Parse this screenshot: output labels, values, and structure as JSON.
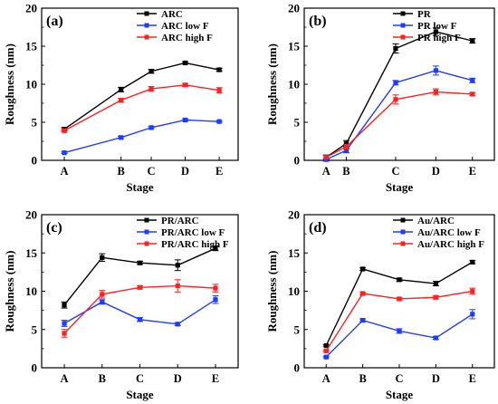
{
  "colors": {
    "black": "#000000",
    "blue": "#1f3bff",
    "red": "#ff2020"
  },
  "chart_data": [
    {
      "type": "line",
      "panel_label": "(a)",
      "xlabel": "Stage",
      "ylabel": "Roughness (nm)",
      "categories": [
        "A",
        "B",
        "C",
        "D",
        "E"
      ],
      "x": [
        0,
        1.5,
        2.3,
        3.2,
        4.1
      ],
      "xlim": [
        -0.6,
        4.6
      ],
      "ylim": [
        0,
        20
      ],
      "yticks": [
        0,
        5,
        10,
        15,
        20
      ],
      "legend_position": "top-right",
      "series": [
        {
          "name": "ARC",
          "color": "#000000",
          "values": [
            4.1,
            9.3,
            11.7,
            12.8,
            11.9
          ],
          "errors": [
            0.2,
            0.3,
            0.25,
            0.15,
            0.2
          ]
        },
        {
          "name": "ARC low F",
          "color": "#1f3bff",
          "values": [
            1.0,
            3.0,
            4.3,
            5.3,
            5.1
          ],
          "errors": [
            0.1,
            0.15,
            0.15,
            0.15,
            0.1
          ]
        },
        {
          "name": "ARC high F",
          "color": "#ff2020",
          "values": [
            3.9,
            7.9,
            9.4,
            9.9,
            9.2
          ],
          "errors": [
            0.2,
            0.25,
            0.3,
            0.2,
            0.35
          ]
        }
      ]
    },
    {
      "type": "line",
      "panel_label": "(b)",
      "xlabel": "Stage",
      "ylabel": "Roughness (nm)",
      "categories": [
        "A",
        "B",
        "C",
        "D",
        "E"
      ],
      "x": [
        0,
        0.55,
        1.9,
        3.0,
        4.0
      ],
      "xlim": [
        -0.6,
        4.6
      ],
      "ylim": [
        0,
        20
      ],
      "yticks": [
        0,
        5,
        10,
        15,
        20
      ],
      "legend_position": "top-right",
      "series": [
        {
          "name": "PR",
          "color": "#000000",
          "values": [
            0.4,
            2.2,
            14.7,
            16.9,
            15.7
          ],
          "errors": [
            0.3,
            0.4,
            0.6,
            0.5,
            0.3
          ]
        },
        {
          "name": "PR low F",
          "color": "#1f3bff",
          "values": [
            0.1,
            1.3,
            10.2,
            11.8,
            10.5
          ],
          "errors": [
            0.2,
            0.3,
            0.3,
            0.6,
            0.3
          ]
        },
        {
          "name": "PR high F",
          "color": "#ff2020",
          "values": [
            0.4,
            1.8,
            8.0,
            9.0,
            8.7
          ],
          "errors": [
            0.2,
            0.3,
            0.6,
            0.4,
            0.2
          ]
        }
      ]
    },
    {
      "type": "line",
      "panel_label": "(c)",
      "xlabel": "Stage",
      "ylabel": "Roughness (nm)",
      "categories": [
        "A",
        "B",
        "C",
        "D",
        "E"
      ],
      "x": [
        0,
        1,
        2,
        3,
        4
      ],
      "xlim": [
        -0.6,
        4.6
      ],
      "ylim": [
        0,
        20
      ],
      "yticks": [
        0,
        5,
        10,
        15,
        20
      ],
      "legend_position": "top-right",
      "series": [
        {
          "name": "PR/ARC",
          "color": "#000000",
          "values": [
            8.2,
            14.4,
            13.7,
            13.4,
            15.6
          ],
          "errors": [
            0.4,
            0.5,
            0.2,
            0.7,
            0.3
          ]
        },
        {
          "name": "PR/ARC low F",
          "color": "#1f3bff",
          "values": [
            5.8,
            8.6,
            6.3,
            5.7,
            8.9
          ],
          "errors": [
            0.4,
            0.3,
            0.25,
            0.2,
            0.5
          ]
        },
        {
          "name": "PR/ARC high F",
          "color": "#ff2020",
          "values": [
            4.5,
            9.6,
            10.5,
            10.7,
            10.4
          ],
          "errors": [
            0.5,
            0.5,
            0.2,
            0.8,
            0.5
          ]
        }
      ]
    },
    {
      "type": "line",
      "panel_label": "(d)",
      "xlabel": "Stage",
      "ylabel": "Roughness (nm)",
      "categories": [
        "A",
        "B",
        "C",
        "D",
        "E"
      ],
      "x": [
        0,
        1,
        2,
        3,
        4
      ],
      "xlim": [
        -0.6,
        4.6
      ],
      "ylim": [
        0,
        20
      ],
      "yticks": [
        0,
        5,
        10,
        15,
        20
      ],
      "legend_position": "top-right",
      "series": [
        {
          "name": "Au/ARC",
          "color": "#000000",
          "values": [
            2.9,
            12.9,
            11.5,
            11.0,
            13.8
          ],
          "errors": [
            0.1,
            0.15,
            0.2,
            0.3,
            0.2
          ]
        },
        {
          "name": "Au/ARC low F",
          "color": "#1f3bff",
          "values": [
            1.4,
            6.2,
            4.8,
            3.9,
            7.0
          ],
          "errors": [
            0.1,
            0.2,
            0.3,
            0.2,
            0.6
          ]
        },
        {
          "name": "Au/ARC high F",
          "color": "#ff2020",
          "values": [
            2.2,
            9.7,
            9.0,
            9.2,
            10.0
          ],
          "errors": [
            0.1,
            0.15,
            0.15,
            0.2,
            0.4
          ]
        }
      ]
    }
  ]
}
